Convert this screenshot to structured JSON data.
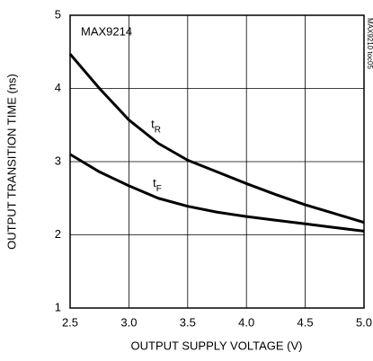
{
  "chart_data": {
    "type": "line",
    "title": "MAX9214",
    "note": "MAX9210 toc05",
    "x_label": "OUTPUT SUPPLY VOLTAGE (V)",
    "y_label": "OUTPUT TRANSITION TIME (ns)",
    "x": [
      2.5,
      2.75,
      3,
      3.25,
      3.5,
      3.75,
      4,
      4.25,
      4.5,
      4.75,
      5
    ],
    "series": [
      {
        "label": "t",
        "label_sub": "R",
        "color": "#000000",
        "values": [
          4.47,
          4.0,
          3.57,
          3.25,
          3.02,
          2.86,
          2.7,
          2.55,
          2.41,
          2.29,
          2.17
        ]
      },
      {
        "label": "t",
        "label_sub": "F",
        "color": "#000000",
        "values": [
          3.1,
          2.86,
          2.67,
          2.5,
          2.39,
          2.31,
          2.25,
          2.2,
          2.15,
          2.1,
          2.05
        ]
      }
    ],
    "xlim": [
      2.5,
      5
    ],
    "ylim": [
      1,
      5
    ],
    "xticks": [
      2.5,
      {
        "value": 3,
        "label": "3.0"
      },
      3.5,
      {
        "value": 4,
        "label": "4.0"
      },
      4.5,
      {
        "value": 5,
        "label": "5.0"
      }
    ],
    "yticks": [
      1,
      2,
      3,
      4,
      5
    ],
    "grid": true
  }
}
